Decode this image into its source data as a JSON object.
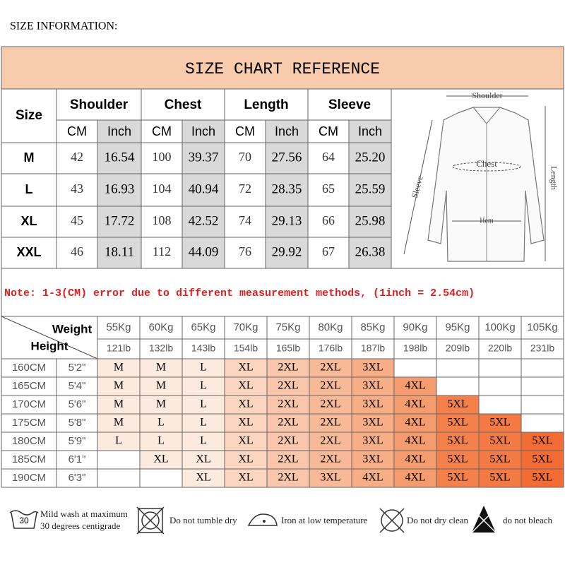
{
  "header": {
    "label": "SIZE INFORMATION:"
  },
  "title": "SIZE CHART REFERENCE",
  "size_table": {
    "corner": "Size",
    "groups": [
      "Shoulder",
      "Chest",
      "Length",
      "Sleeve"
    ],
    "units": [
      "CM",
      "Inch"
    ],
    "rows": [
      [
        "M",
        "42",
        "16.54",
        "100",
        "39.37",
        "70",
        "27.56",
        "64",
        "25.20"
      ],
      [
        "L",
        "43",
        "16.93",
        "104",
        "40.94",
        "72",
        "28.35",
        "65",
        "25.59"
      ],
      [
        "XL",
        "45",
        "17.72",
        "108",
        "42.52",
        "74",
        "29.13",
        "66",
        "25.98"
      ],
      [
        "XXL",
        "46",
        "18.11",
        "112",
        "44.09",
        "76",
        "29.92",
        "67",
        "26.38"
      ]
    ]
  },
  "diagram": {
    "shoulder": "Shoulder",
    "chest": "Chest",
    "length": "Length",
    "sleeve": "Sleeve",
    "hem": "Hem"
  },
  "note": "Note: 1-3(CM) error due to different measurement methods, (1inch = 2.54cm)",
  "weight_table": {
    "weight_label": "Weight",
    "height_label": "Height",
    "kg": [
      "55Kg",
      "60Kg",
      "65Kg",
      "70Kg",
      "75Kg",
      "80Kg",
      "85Kg",
      "90Kg",
      "95Kg",
      "100Kg",
      "105Kg"
    ],
    "lb": [
      "121lb",
      "132lb",
      "143lb",
      "154lb",
      "165lb",
      "176lb",
      "187lb",
      "198lb",
      "209lb",
      "220lb",
      "231lb"
    ],
    "column_colors": [
      "#fdeadf",
      "#fdeadf",
      "#fdeadf",
      "#fbd5c0",
      "#f9c6ab",
      "#f8b998",
      "#f7ad86",
      "#f59c6e",
      "#f4804c",
      "#f37a44",
      "#f26c34"
    ],
    "rows": [
      {
        "cm": "160CM",
        "ft": "5'2\"",
        "sizes": [
          "M",
          "M",
          "L",
          "XL",
          "2XL",
          "2XL",
          "3XL",
          null,
          null,
          null,
          null
        ]
      },
      {
        "cm": "165CM",
        "ft": "5'4\"",
        "sizes": [
          "M",
          "M",
          "L",
          "XL",
          "2XL",
          "2XL",
          "3XL",
          "4XL",
          null,
          null,
          null
        ]
      },
      {
        "cm": "170CM",
        "ft": "5'6\"",
        "sizes": [
          "M",
          "M",
          "L",
          "XL",
          "2XL",
          "2XL",
          "3XL",
          "4XL",
          "5XL",
          null,
          null
        ]
      },
      {
        "cm": "175CM",
        "ft": "5'8\"",
        "sizes": [
          "M",
          "L",
          "L",
          "XL",
          "2XL",
          "2XL",
          "3XL",
          "4XL",
          "5XL",
          "5XL",
          null
        ]
      },
      {
        "cm": "180CM",
        "ft": "5'9\"",
        "sizes": [
          "L",
          "L",
          "L",
          "XL",
          "2XL",
          "2XL",
          "3XL",
          "4XL",
          "5XL",
          "5XL",
          "5XL"
        ]
      },
      {
        "cm": "185CM",
        "ft": "6'1\"",
        "sizes": [
          null,
          "XL",
          "XL",
          "XL",
          "2XL",
          "2XL",
          "3XL",
          "4XL",
          "5XL",
          "5XL",
          "5XL"
        ]
      },
      {
        "cm": "190CM",
        "ft": "6'3\"",
        "sizes": [
          null,
          null,
          "XL",
          "XL",
          "2XL",
          "3XL",
          "4XL",
          "4XL",
          "5XL",
          "5XL",
          "5XL"
        ]
      }
    ]
  },
  "care": [
    {
      "icon_text": "30",
      "lines": [
        "Mild wash at maximum",
        "30 degrees centigrade"
      ]
    },
    {
      "lines": [
        "Do not tumble dry"
      ]
    },
    {
      "lines": [
        "Iron at low temperature"
      ]
    },
    {
      "lines": [
        "Do not dry clean"
      ]
    },
    {
      "lines": [
        "do not bleach"
      ]
    }
  ]
}
